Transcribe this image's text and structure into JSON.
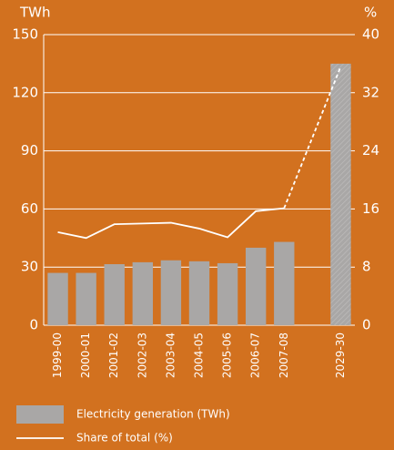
{
  "chart_data": {
    "type": "bar",
    "y_label": "TWh",
    "y2_label": "%",
    "categories": [
      "1999-00",
      "2000-01",
      "2001-02",
      "2002-03",
      "2003-04",
      "2004-05",
      "2005-06",
      "2006-07",
      "2007-08",
      null,
      "2029-30"
    ],
    "series": [
      {
        "name": "Electricity generation (TWh)",
        "color": "#a9a7a6",
        "type": "bar",
        "values": [
          27,
          27,
          31.5,
          32.5,
          33.5,
          33,
          32,
          40,
          43,
          null,
          135
        ]
      },
      {
        "name": "Share of total (%)",
        "color": "#ffffff",
        "type": "line",
        "axis": "y2",
        "values": [
          12.8,
          12,
          13.9,
          14,
          14.1,
          13.3,
          12.1,
          15.7,
          16.1,
          null,
          35.6
        ]
      }
    ],
    "ylim": [
      0,
      150
    ],
    "yticks": [
      0,
      30,
      60,
      90,
      120,
      150
    ],
    "y2lim": [
      0,
      40
    ],
    "y2ticks": [
      0,
      8,
      16,
      24,
      32,
      40
    ],
    "grid": true
  }
}
